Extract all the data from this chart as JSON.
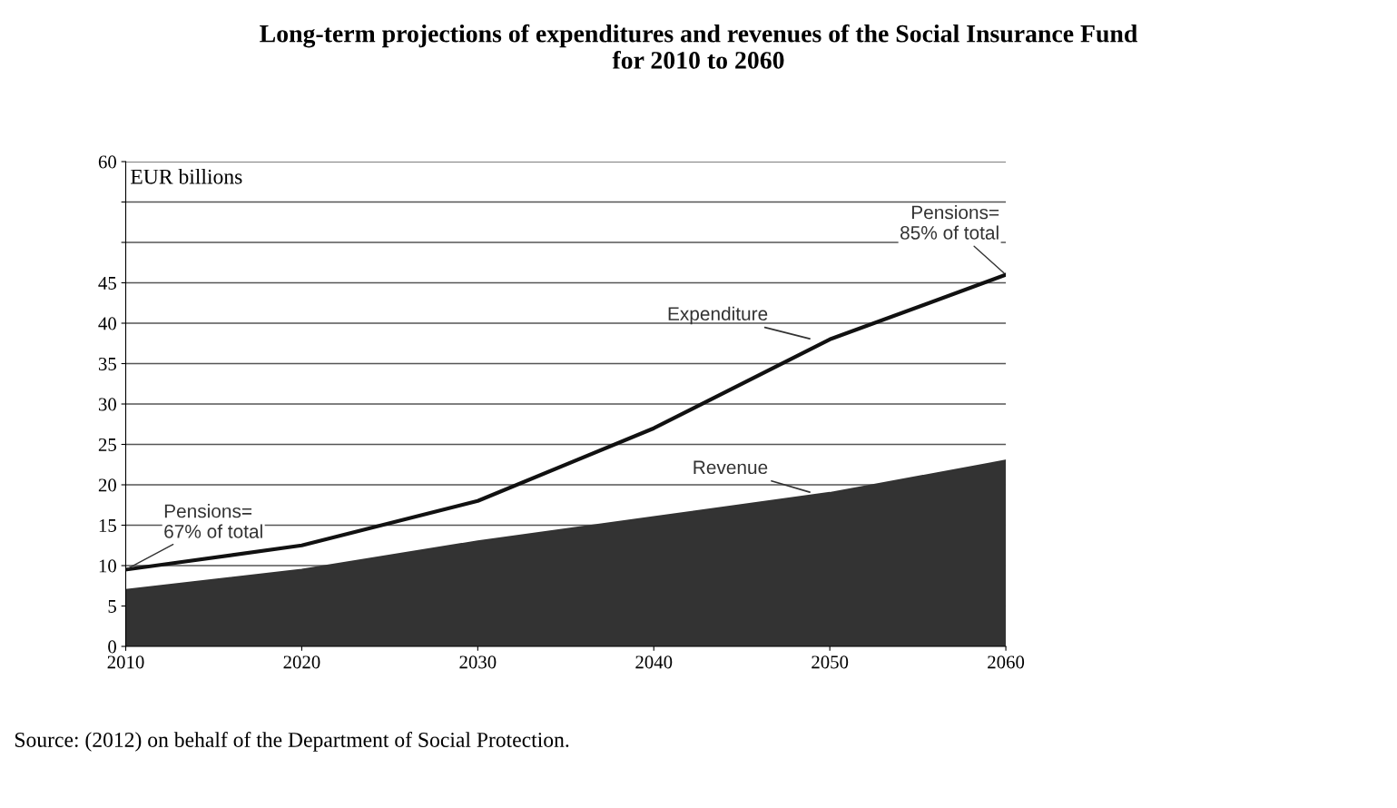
{
  "chart_data": {
    "type": "line",
    "title": "Long-term projections of expenditures and revenues of the Social Insurance Fund\nfor 2010 to 2060",
    "ylabel": "EUR billions",
    "x": [
      2010,
      2020,
      2030,
      2040,
      2050,
      2060
    ],
    "series": [
      {
        "name": "Expenditure",
        "color": "#111111",
        "values": [
          9.5,
          12.5,
          18,
          27,
          38,
          46
        ]
      },
      {
        "name": "Revenue",
        "type": "area",
        "color": "#333333",
        "values": [
          7,
          9.5,
          13,
          16,
          19,
          23
        ]
      }
    ],
    "xlim": [
      2010,
      2060
    ],
    "xticks": [
      2010,
      2020,
      2030,
      2040,
      2050,
      2060
    ],
    "ylim": [
      0,
      60
    ],
    "yticks": [
      0,
      5,
      10,
      15,
      20,
      25,
      30,
      35,
      40,
      45,
      {
        "value": 50,
        "label": null
      },
      {
        "value": 55,
        "label": null
      },
      60
    ],
    "grid": "y",
    "annotations": [
      {
        "text": "Pensions=\n67% of total",
        "x": 2010,
        "y": 9.5
      },
      {
        "text": "Pensions=\n85% of total",
        "x": 2060,
        "y": 46
      },
      "Source: (2012) on behalf of the Department of Social Protection."
    ]
  }
}
